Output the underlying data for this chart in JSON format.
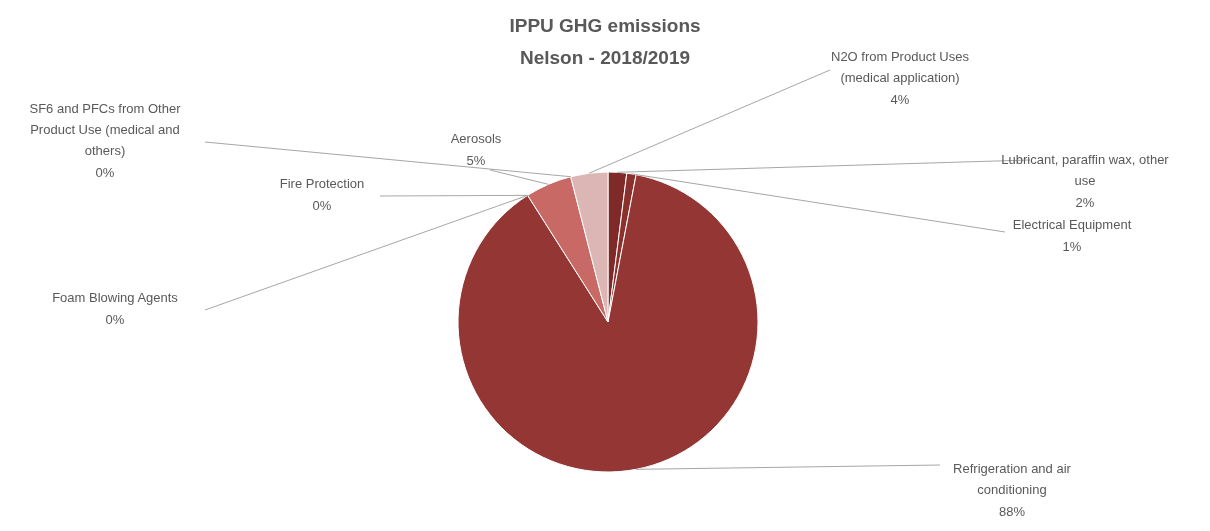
{
  "chart_data": {
    "type": "pie",
    "title": "IPPU GHG emissions",
    "subtitle": "Nelson - 2018/2019",
    "categories": [
      "Lubricant, paraffin wax, other use",
      "Electrical Equipment",
      "Refrigeration and air conditioning",
      "Foam Blowing Agents",
      "Fire Protection",
      "Aerosols",
      "SF6 and PFCs from Other Product Use (medical and others)",
      "N2O from Product Uses (medical application)"
    ],
    "values": [
      2,
      1,
      88,
      0,
      0,
      5,
      0,
      4
    ],
    "colors": [
      "#7f2a28",
      "#8c302e",
      "#943634",
      "#a84542",
      "#b9504d",
      "#c96965",
      "#d48f8c",
      "#dcb6b5"
    ],
    "value_labels": [
      "2%",
      "1%",
      "88%",
      "0%",
      "0%",
      "5%",
      "0%",
      "4%"
    ],
    "legend": false
  }
}
